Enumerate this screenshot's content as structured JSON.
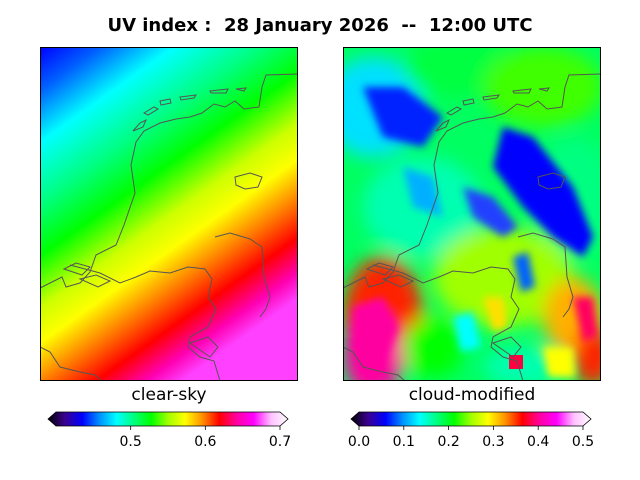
{
  "title": "UV index :  28 January 2026  --  12:00 UTC",
  "panels": {
    "left": {
      "label": "clear-sky",
      "colorbar": {
        "ticks": [
          "0.5",
          "0.6",
          "0.7"
        ],
        "tick_values": [
          0.5,
          0.6,
          0.7
        ],
        "range": [
          0.4,
          0.7
        ]
      }
    },
    "right": {
      "label": "cloud-modified",
      "colorbar": {
        "ticks": [
          "0.0",
          "0.1",
          "0.2",
          "0.3",
          "0.4",
          "0.5"
        ],
        "tick_values": [
          0.0,
          0.1,
          0.2,
          0.3,
          0.4,
          0.5
        ],
        "range": [
          0.0,
          0.5
        ]
      }
    }
  },
  "colors": {
    "colormap": [
      "#000000",
      "#3a0090",
      "#0000ff",
      "#0090ff",
      "#00ffff",
      "#00ff80",
      "#00ff00",
      "#a0ff00",
      "#ffff00",
      "#ff9000",
      "#ff0000",
      "#ff00a0",
      "#ff00ff",
      "#ffc0ff",
      "#ffffff"
    ],
    "coastline": "#555555"
  }
}
